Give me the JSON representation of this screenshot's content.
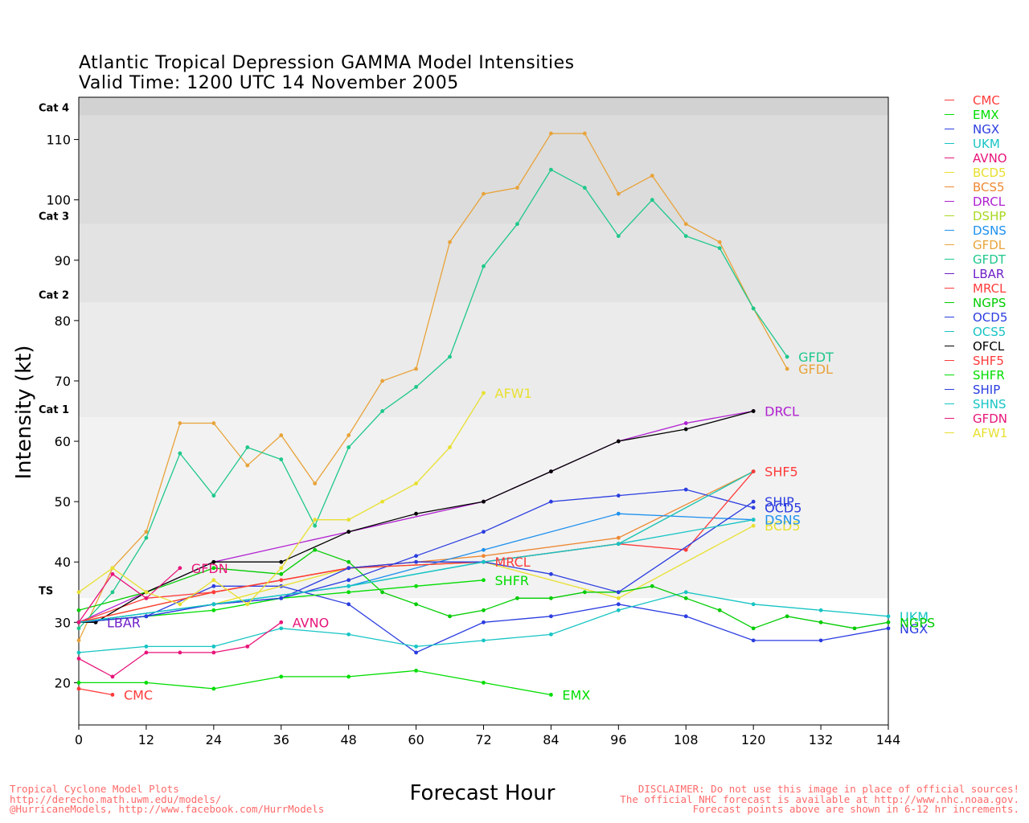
{
  "title_line1": "Atlantic Tropical Depression GAMMA Model Intensities",
  "title_line2": "Valid Time: 1200 UTC 14 November 2005",
  "footer_left": [
    "Tropical Cyclone Model Plots",
    "http://derecho.math.uwm.edu/models/",
    "@HurricaneModels, http://www.facebook.com/HurrModels"
  ],
  "footer_right": [
    "DISCLAIMER: Do not use this image in place of official sources!",
    "The official NHC forecast is available at http://www.nhc.noaa.gov.",
    "Forecast points above are shown in 6-12 hr increments."
  ],
  "chart_data": {
    "type": "line",
    "title": "Atlantic Tropical Depression GAMMA Model Intensities",
    "subtitle": "Valid Time: 1200 UTC 14 November 2005",
    "xlabel": "Forecast Hour",
    "ylabel": "Intensity (kt)",
    "xlim": [
      0,
      144
    ],
    "ylim": [
      13,
      117
    ],
    "xticks": [
      0,
      12,
      24,
      36,
      48,
      60,
      72,
      84,
      96,
      108,
      120,
      132,
      144
    ],
    "yticks": [
      20,
      30,
      40,
      50,
      60,
      70,
      80,
      90,
      100,
      110
    ],
    "category_bands": [
      {
        "label": "TS",
        "from": 34,
        "to": 64,
        "color": "#f2f2f2"
      },
      {
        "label": "Cat 1",
        "from": 64,
        "to": 83,
        "color": "#ebebeb"
      },
      {
        "label": "Cat 2",
        "from": 83,
        "to": 96,
        "color": "#e3e3e3"
      },
      {
        "label": "Cat 3",
        "from": 96,
        "to": 114,
        "color": "#dcdcdc"
      },
      {
        "label": "Cat 4",
        "from": 114,
        "to": 117,
        "color": "#d2d2d2"
      }
    ],
    "series": [
      {
        "name": "CMC",
        "color": "#ff3b3b",
        "x": [
          0,
          6
        ],
        "y": [
          19,
          18
        ],
        "end_label": "CMC"
      },
      {
        "name": "EMX",
        "color": "#00dd00",
        "x": [
          0,
          12,
          24,
          36,
          48,
          60,
          72,
          84
        ],
        "y": [
          20,
          20,
          19,
          21,
          21,
          22,
          20,
          18
        ],
        "end_label": "EMX"
      },
      {
        "name": "NGX",
        "color": "#2b3de0",
        "x": [
          0,
          12,
          24,
          36,
          48,
          60,
          72,
          84,
          96,
          108,
          120,
          132,
          144
        ],
        "y": [
          30,
          31,
          36,
          36,
          33,
          25,
          30,
          31,
          33,
          31,
          27,
          27,
          29
        ],
        "end_label": "NGX"
      },
      {
        "name": "UKM",
        "color": "#17c4c4",
        "x": [
          0,
          12,
          24,
          36,
          48,
          60,
          72,
          84,
          96,
          108,
          120,
          132,
          144
        ],
        "y": [
          25,
          26,
          26,
          29,
          28,
          26,
          27,
          28,
          32,
          35,
          33,
          32,
          31
        ],
        "end_label": "UKM"
      },
      {
        "name": "AVNO",
        "color": "#e8157a",
        "x": [
          0,
          6,
          12,
          18,
          24,
          30,
          36
        ],
        "y": [
          24,
          21,
          25,
          25,
          25,
          26,
          30
        ],
        "end_label": "AVNO"
      },
      {
        "name": "BCD5",
        "color": "#e8e030",
        "x": [
          0,
          24,
          48,
          72,
          96,
          120
        ],
        "y": [
          30,
          33,
          39,
          40,
          34,
          46
        ],
        "end_label": "BCD5"
      },
      {
        "name": "BCS5",
        "color": "#ee8833",
        "x": [
          0,
          24,
          48,
          72,
          96,
          120
        ],
        "y": [
          30,
          35,
          39,
          41,
          44,
          55
        ],
        "end_label": ""
      },
      {
        "name": "DRCL",
        "color": "#b020d0",
        "x": [
          0,
          24,
          48,
          72,
          84,
          96,
          108,
          120
        ],
        "y": [
          30,
          40,
          45,
          50,
          55,
          60,
          63,
          65
        ],
        "end_label": "DRCL"
      },
      {
        "name": "DSHP",
        "color": "#a8d820",
        "x": [
          0,
          24,
          48,
          72,
          96,
          120
        ],
        "y": [
          30,
          35,
          39,
          40,
          43,
          55
        ],
        "end_label": ""
      },
      {
        "name": "DSNS",
        "color": "#1e90ee",
        "x": [
          0,
          24,
          48,
          72,
          96,
          120
        ],
        "y": [
          30,
          33,
          36,
          42,
          48,
          47
        ],
        "end_label": "DSNS"
      },
      {
        "name": "GFDL",
        "color": "#e8a33a",
        "x": [
          0,
          6,
          12,
          18,
          24,
          30,
          36,
          42,
          48,
          54,
          60,
          66,
          72,
          78,
          84,
          90,
          96,
          102,
          108,
          114,
          120,
          126
        ],
        "y": [
          27,
          39,
          45,
          63,
          63,
          56,
          61,
          53,
          61,
          70,
          72,
          93,
          101,
          102,
          111,
          111,
          101,
          104,
          96,
          93,
          82,
          72
        ],
        "end_label": "GFDL"
      },
      {
        "name": "GFDT",
        "color": "#1ec88a",
        "x": [
          0,
          6,
          12,
          18,
          24,
          30,
          36,
          42,
          48,
          54,
          60,
          66,
          72,
          78,
          84,
          90,
          96,
          102,
          108,
          114,
          120,
          126
        ],
        "y": [
          29,
          35,
          44,
          58,
          51,
          59,
          57,
          46,
          59,
          65,
          69,
          74,
          89,
          96,
          105,
          102,
          94,
          100,
          94,
          92,
          82,
          74
        ],
        "end_label": "GFDT"
      },
      {
        "name": "LBAR",
        "color": "#7020c8",
        "x": [
          0,
          3
        ],
        "y": [
          30,
          30
        ],
        "end_label": "LBAR"
      },
      {
        "name": "MRCL",
        "color": "#ff3b3b",
        "x": [
          0,
          12,
          24,
          36,
          48,
          60,
          72
        ],
        "y": [
          30,
          34,
          35,
          37,
          39,
          40,
          40
        ],
        "end_label": "MRCL"
      },
      {
        "name": "NGPS",
        "color": "#00cc00",
        "x": [
          0,
          12,
          24,
          36,
          42,
          48,
          54,
          60,
          66,
          72,
          78,
          84,
          90,
          96,
          102,
          108,
          114,
          120,
          126,
          132,
          138,
          144
        ],
        "y": [
          32,
          35,
          39,
          38,
          42,
          40,
          35,
          33,
          31,
          32,
          34,
          34,
          35,
          35,
          36,
          34,
          32,
          29,
          31,
          30,
          29,
          30
        ],
        "end_label": "NGPS"
      },
      {
        "name": "OCD5",
        "color": "#2b3de0",
        "x": [
          0,
          12,
          24,
          36,
          48,
          60,
          72,
          84,
          96,
          108,
          120
        ],
        "y": [
          30,
          31,
          33,
          34,
          37,
          41,
          45,
          50,
          51,
          52,
          49
        ],
        "end_label": "OCD5"
      },
      {
        "name": "OCS5",
        "color": "#17c4c4",
        "x": [
          0,
          24,
          48,
          72,
          96,
          120
        ],
        "y": [
          30,
          33,
          36,
          40,
          43,
          55
        ],
        "end_label": ""
      },
      {
        "name": "OFCL",
        "color": "#000000",
        "x": [
          0,
          3,
          12,
          24,
          36,
          48,
          60,
          72,
          84,
          96,
          108,
          120
        ],
        "y": [
          30,
          30,
          35,
          40,
          40,
          45,
          48,
          50,
          55,
          60,
          62,
          65
        ],
        "end_label": ""
      },
      {
        "name": "SHF5",
        "color": "#ff3b3b",
        "x": [
          0,
          24,
          48,
          72,
          96,
          108,
          120
        ],
        "y": [
          30,
          35,
          39,
          40,
          43,
          42,
          55
        ],
        "end_label": "SHF5"
      },
      {
        "name": "SHFR",
        "color": "#00dd00",
        "x": [
          0,
          12,
          24,
          36,
          48,
          60,
          72
        ],
        "y": [
          30,
          31,
          32,
          34,
          35,
          36,
          37
        ],
        "end_label": "SHFR"
      },
      {
        "name": "SHIP",
        "color": "#2b3de0",
        "x": [
          0,
          12,
          24,
          36,
          48,
          60,
          72,
          84,
          96,
          120
        ],
        "y": [
          30,
          31,
          33,
          34,
          39,
          40,
          40,
          38,
          35,
          50
        ],
        "end_label": "SHIP"
      },
      {
        "name": "SHNS",
        "color": "#17c4c4",
        "x": [
          0,
          24,
          48,
          72,
          96,
          120
        ],
        "y": [
          30,
          33,
          36,
          40,
          43,
          47
        ],
        "end_label": ""
      },
      {
        "name": "GFDN",
        "color": "#e8157a",
        "x": [
          0,
          6,
          12,
          18
        ],
        "y": [
          30,
          38,
          34,
          39
        ],
        "end_label": "GFDN"
      },
      {
        "name": "AFW1",
        "color": "#e8e030",
        "x": [
          0,
          6,
          12,
          18,
          24,
          30,
          36,
          42,
          48,
          54,
          60,
          66,
          72
        ],
        "y": [
          35,
          39,
          35,
          33,
          37,
          33,
          39,
          47,
          47,
          50,
          53,
          59,
          68
        ],
        "end_label": "AFW1"
      }
    ]
  }
}
